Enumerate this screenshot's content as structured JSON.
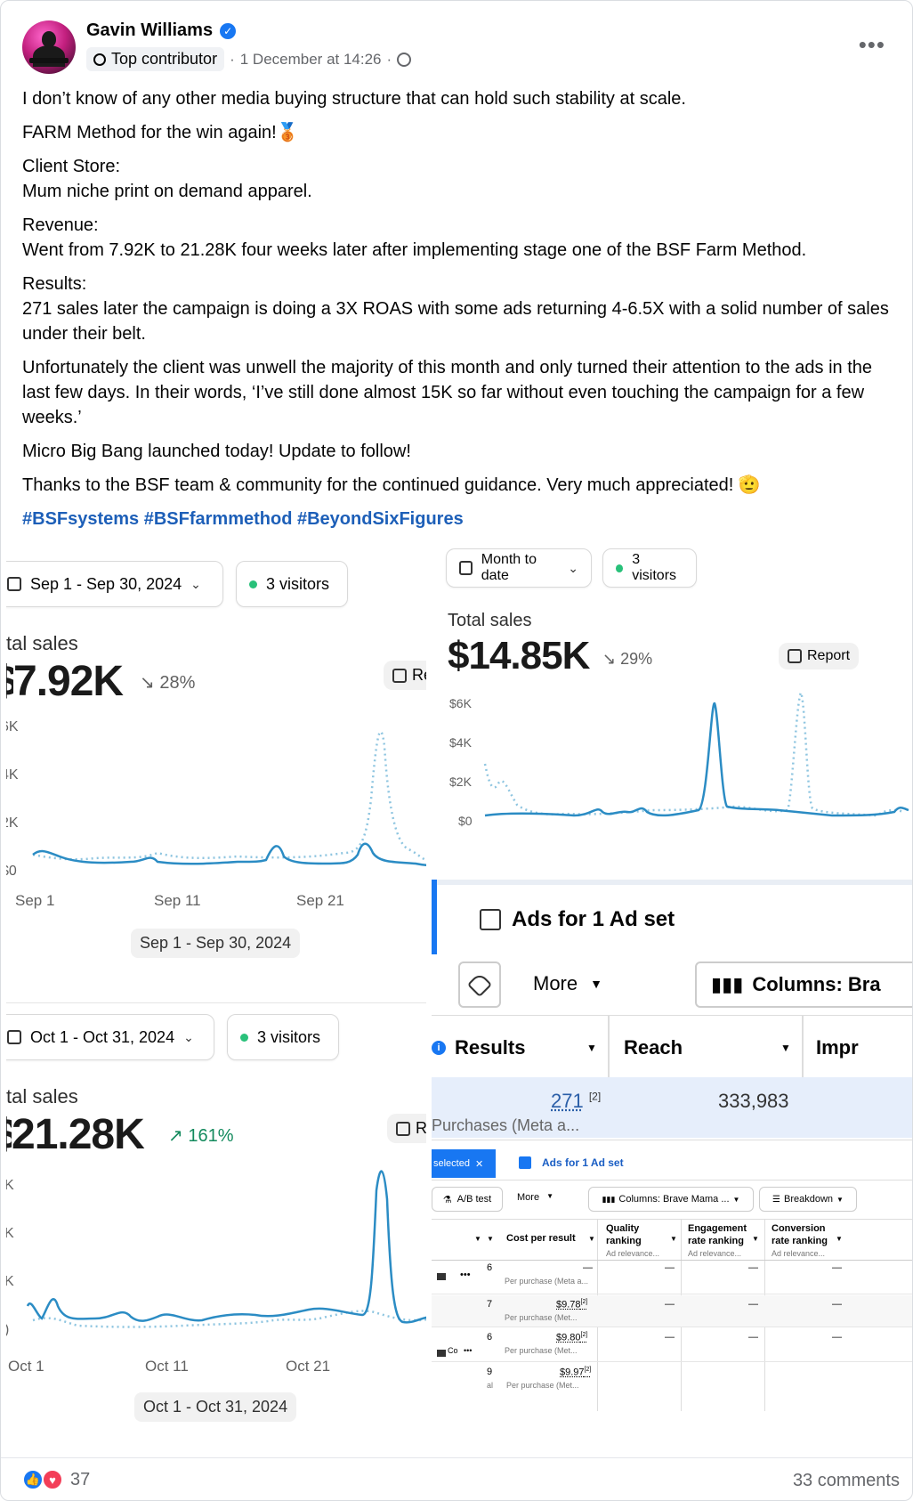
{
  "post": {
    "author": "Gavin Williams",
    "badge": "Top contributor",
    "timestamp": "1 December at 14:26",
    "separator": "·",
    "more_icon": "•••",
    "lines": [
      "I don’t know of any other media buying structure that can hold such stability at scale.",
      "FARM Method for the win again!🥉",
      "Client Store:",
      "Mum niche print on demand apparel.",
      "Revenue:",
      "Went from 7.92K to 21.28K four weeks later after implementing stage one of the BSF Farm Method.",
      "Results:",
      "271 sales later the campaign is doing a 3X ROAS with some ads returning 4-6.5X with a solid number of sales under their belt.",
      "Unfortunately the client was unwell the majority of this month and only turned their attention to the ads in the last few days. In their words, ‘I’ve still done almost 15K so far without even touching the campaign for a few weeks.’",
      "Micro Big Bang launched today! Update to follow!",
      "Thanks to the BSF team & community for the continued guidance. Very much appreciated! 🫡",
      "#BSFsystems #BSFfarmmethod #BeyondSixFigures"
    ]
  },
  "panel_sep": {
    "date_range": "Sep 1 - Sep 30, 2024",
    "visitors": "3 visitors",
    "label": "tal sales",
    "value": "7.92K",
    "value_prefix": "$",
    "change": "28%",
    "change_arrow": "↘",
    "report": "Repo",
    "y_ticks": [
      "6K",
      "4K",
      "2K",
      "$0"
    ],
    "x_ticks": [
      "Sep 1",
      "Sep 11",
      "Sep 21"
    ],
    "range_chip": "Sep 1 - Sep 30, 2024"
  },
  "panel_mtd": {
    "date_range": "Month to date",
    "visitors": "3 visitors",
    "label": "Total sales",
    "value": "$14.85K",
    "change": "29%",
    "change_arrow": "↘",
    "report": "Report",
    "y_ticks": [
      "$6K",
      "$4K",
      "$2K",
      "$0"
    ]
  },
  "panel_oct": {
    "date_range": "Oct 1 - Oct 31, 2024",
    "visitors": "3 visitors",
    "label": "tal sales",
    "value": "21.28K",
    "value_prefix": "$",
    "change": "161%",
    "change_arrow": "↗",
    "report": "Repo",
    "y_ticks": [
      "K",
      "K",
      "K",
      ")"
    ],
    "x_ticks": [
      "Oct 1",
      "Oct 11",
      "Oct 21"
    ],
    "range_chip": "Oct 1 - Oct 31, 2024"
  },
  "ads_top": {
    "tab": "Ads for 1 Ad set",
    "more": "More",
    "columns": "Columns: Bra",
    "col_results": "Results",
    "col_reach": "Reach",
    "col_impr": "Impr",
    "results_value": "271",
    "results_note": "[2]",
    "reach_value": "333,983",
    "results_sub": "Purchases (Meta a..."
  },
  "ads_bot": {
    "selected": "selected",
    "tab": "Ads for 1 Ad set",
    "ab_test": "A/B test",
    "more": "More",
    "columns": "Columns: Brave Mama ...",
    "breakdown": "Breakdown",
    "headers": {
      "cost": "Cost per result",
      "quality": "Quality ranking",
      "quality_sub": "Ad relevance...",
      "engagement": "Engagement rate ranking",
      "engagement_sub": "Ad relevance...",
      "conversion": "Conversion rate ranking",
      "conversion_sub": "Ad relevance..."
    },
    "rows": [
      {
        "left": "6",
        "cost": "—",
        "sub": "Per purchase (Meta a...",
        "q": "—",
        "e": "—",
        "c": "—"
      },
      {
        "left": "7",
        "cost": "$9.78",
        "sub": "Per purchase (Met...",
        "q": "—",
        "e": "—",
        "c": "—"
      },
      {
        "left": "6",
        "cost": "$9.80",
        "sub": "Per purchase (Met...",
        "q": "—",
        "e": "—",
        "c": "—",
        "name": "Co"
      },
      {
        "left": "9",
        "cost": "$9.97",
        "sub": "Per purchase (Met...",
        "q": "",
        "e": "",
        "c": ""
      }
    ],
    "note": "[2]",
    "row_left_sub": "al"
  },
  "footer": {
    "reactions": "37",
    "comments": "33 comments"
  },
  "colors": {
    "accent_line": "#2b8cc4",
    "dotted_line": "#8ec5e0",
    "hashtag": "#1d5fb8",
    "up": "#138a5d"
  }
}
